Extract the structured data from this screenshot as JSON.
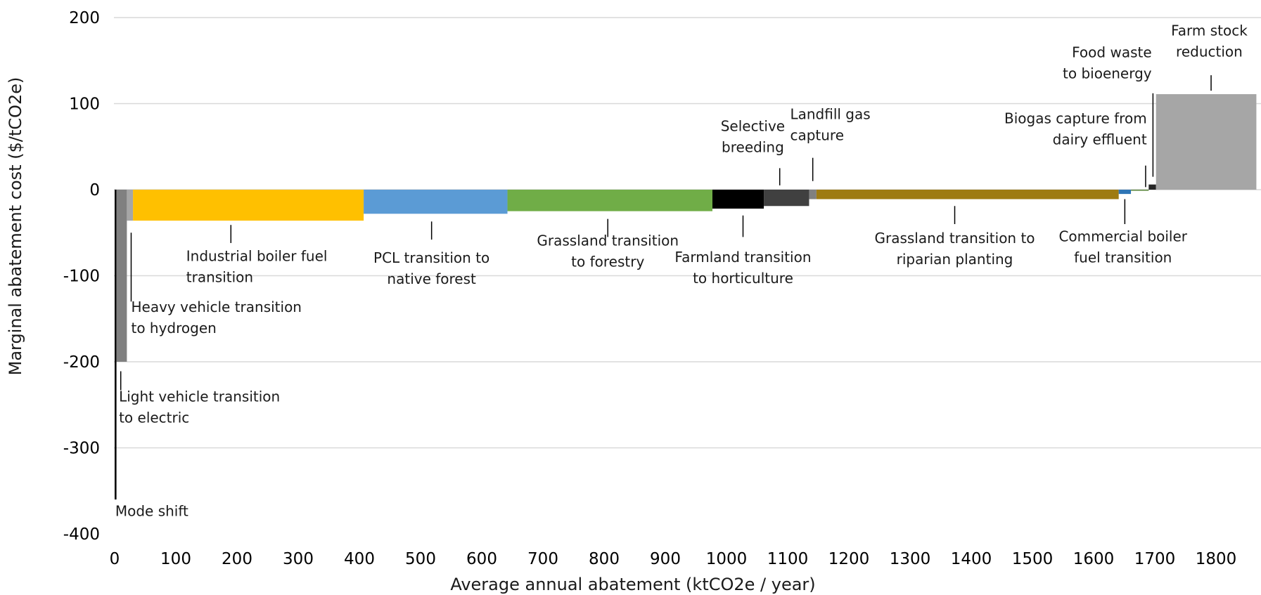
{
  "chart_data": {
    "type": "bar",
    "subtype": "marginal abatement cost curve (variable-width bars)",
    "title": "",
    "xlabel": "Average annual abatement (ktCO2e / year)",
    "ylabel": "Marginal abatement cost ($/tCO2e)",
    "xlim": [
      0,
      1866
    ],
    "ylim": [
      -400,
      200
    ],
    "xticks": [
      "0",
      "100",
      "200",
      "300",
      "400",
      "500",
      "600",
      "700",
      "800",
      "900",
      "1000",
      "1100",
      "1200",
      "1300",
      "1400",
      "1500",
      "1600",
      "1700",
      "1800"
    ],
    "yticks": [
      "200",
      "100",
      "0",
      "-100",
      "-200",
      "-300",
      "-400"
    ],
    "grid": "horizontal",
    "legend": "none",
    "measures": [
      {
        "name": "Mode shift",
        "x_start": 0,
        "x_end": 3,
        "value": -360,
        "color": "#000000"
      },
      {
        "name": "Light vehicle transition to electric",
        "x_start": 3,
        "x_end": 20,
        "value": -200,
        "color": "#808080"
      },
      {
        "name": "Heavy vehicle transition to hydrogen",
        "x_start": 20,
        "x_end": 30,
        "value": -36,
        "color": "#A6A6A6"
      },
      {
        "name": "Industrial boiler fuel transition",
        "x_start": 30,
        "x_end": 407,
        "value": -36,
        "color": "#FFC000"
      },
      {
        "name": "PCL transition to native forest",
        "x_start": 407,
        "x_end": 642,
        "value": -28,
        "color": "#5B9BD5"
      },
      {
        "name": "Grassland transition to forestry",
        "x_start": 642,
        "x_end": 977,
        "value": -25,
        "color": "#70AD47"
      },
      {
        "name": "Farmland transition to horticulture",
        "x_start": 977,
        "x_end": 1061,
        "value": -22,
        "color": "#000000"
      },
      {
        "name": "Selective breeding",
        "x_start": 1061,
        "x_end": 1135,
        "value": -19,
        "color": "#404040"
      },
      {
        "name": "Landfill gas capture",
        "x_start": 1135,
        "x_end": 1147,
        "value": -11,
        "color": "#808080"
      },
      {
        "name": "Grassland transition to riparian planting",
        "x_start": 1147,
        "x_end": 1641,
        "value": -11,
        "color": "#9E7B12"
      },
      {
        "name": "Commercial boiler fuel transition",
        "x_start": 1641,
        "x_end": 1661,
        "value": -5,
        "color": "#2E75B6"
      },
      {
        "name": "Biogas capture from dairy effluent",
        "x_start": 1661,
        "x_end": 1690,
        "value": -1,
        "color": "#548235"
      },
      {
        "name": "Food waste to bioenergy",
        "x_start": 1690,
        "x_end": 1702,
        "value": 6,
        "color": "#262626"
      },
      {
        "name": "Farm stock reduction",
        "x_start": 1702,
        "x_end": 1866,
        "value": 111,
        "color": "#A6A6A6"
      }
    ],
    "annotations": [
      {
        "lines": [
          "Industrial boiler fuel",
          "transition"
        ],
        "anchor": "start",
        "tx": 117,
        "ty": -83,
        "lx": 190,
        "ly1": -41,
        "ly2": -62
      },
      {
        "lines": [
          "PCL transition to",
          "native forest"
        ],
        "anchor": "middle",
        "tx": 518,
        "ty": -85,
        "lx": 518,
        "ly1": -37,
        "ly2": -58
      },
      {
        "lines": [
          "Grassland transition",
          "to forestry"
        ],
        "anchor": "middle",
        "tx": 806,
        "ty": -65,
        "lx": 806,
        "ly1": -34,
        "ly2": -55
      },
      {
        "lines": [
          "Farmland transition",
          "to horticulture"
        ],
        "anchor": "middle",
        "tx": 1027,
        "ty": -84,
        "lx": 1027,
        "ly1": -30,
        "ly2": -55
      },
      {
        "lines": [
          "Selective",
          "breeding"
        ],
        "anchor": "middle",
        "tx": 1043,
        "ty": 68,
        "lx": 1087,
        "ly1": 25,
        "ly2": 5
      },
      {
        "lines": [
          "Landfill gas",
          "capture"
        ],
        "anchor": "start",
        "tx": 1104,
        "ty": 82,
        "lx": 1141,
        "ly1": 37,
        "ly2": 10
      },
      {
        "lines": [
          "Grassland transition to",
          "riparian planting"
        ],
        "anchor": "middle",
        "tx": 1373,
        "ty": -62,
        "lx": 1373,
        "ly1": -19,
        "ly2": -40
      },
      {
        "lines": [
          "Commercial boiler",
          "fuel transition"
        ],
        "anchor": "middle",
        "tx": 1648,
        "ty": -60,
        "lx": 1651,
        "ly1": -11,
        "ly2": -40
      },
      {
        "lines": [
          "Biogas capture from",
          "dairy effluent"
        ],
        "anchor": "end",
        "tx": 1687,
        "ty": 77,
        "lx": 1685,
        "ly1": 28,
        "ly2": 3
      },
      {
        "lines": [
          "Food waste",
          "to bioenergy"
        ],
        "anchor": "end",
        "tx": 1695,
        "ty": 154,
        "lx": 1697,
        "ly1": 112,
        "ly2": 15
      },
      {
        "lines": [
          "Farm stock",
          "reduction"
        ],
        "anchor": "middle",
        "tx": 1789,
        "ty": 179,
        "lx": 1792,
        "ly1": 133,
        "ly2": 115
      },
      {
        "lines": [
          "Heavy vehicle transition",
          "to hydrogen"
        ],
        "anchor": "start",
        "tx": 27,
        "ty": -142,
        "lx": 27,
        "ly1": -50,
        "ly2": -130
      },
      {
        "lines": [
          "Light vehicle transition",
          "to electric"
        ],
        "anchor": "start",
        "tx": 7,
        "ty": -246,
        "lx": 10,
        "ly1": -211,
        "ly2": -233
      },
      {
        "lines": [
          "Mode shift"
        ],
        "anchor": "start",
        "tx": 1,
        "ty": -379,
        "lx": null,
        "ly1": null,
        "ly2": null
      }
    ]
  }
}
